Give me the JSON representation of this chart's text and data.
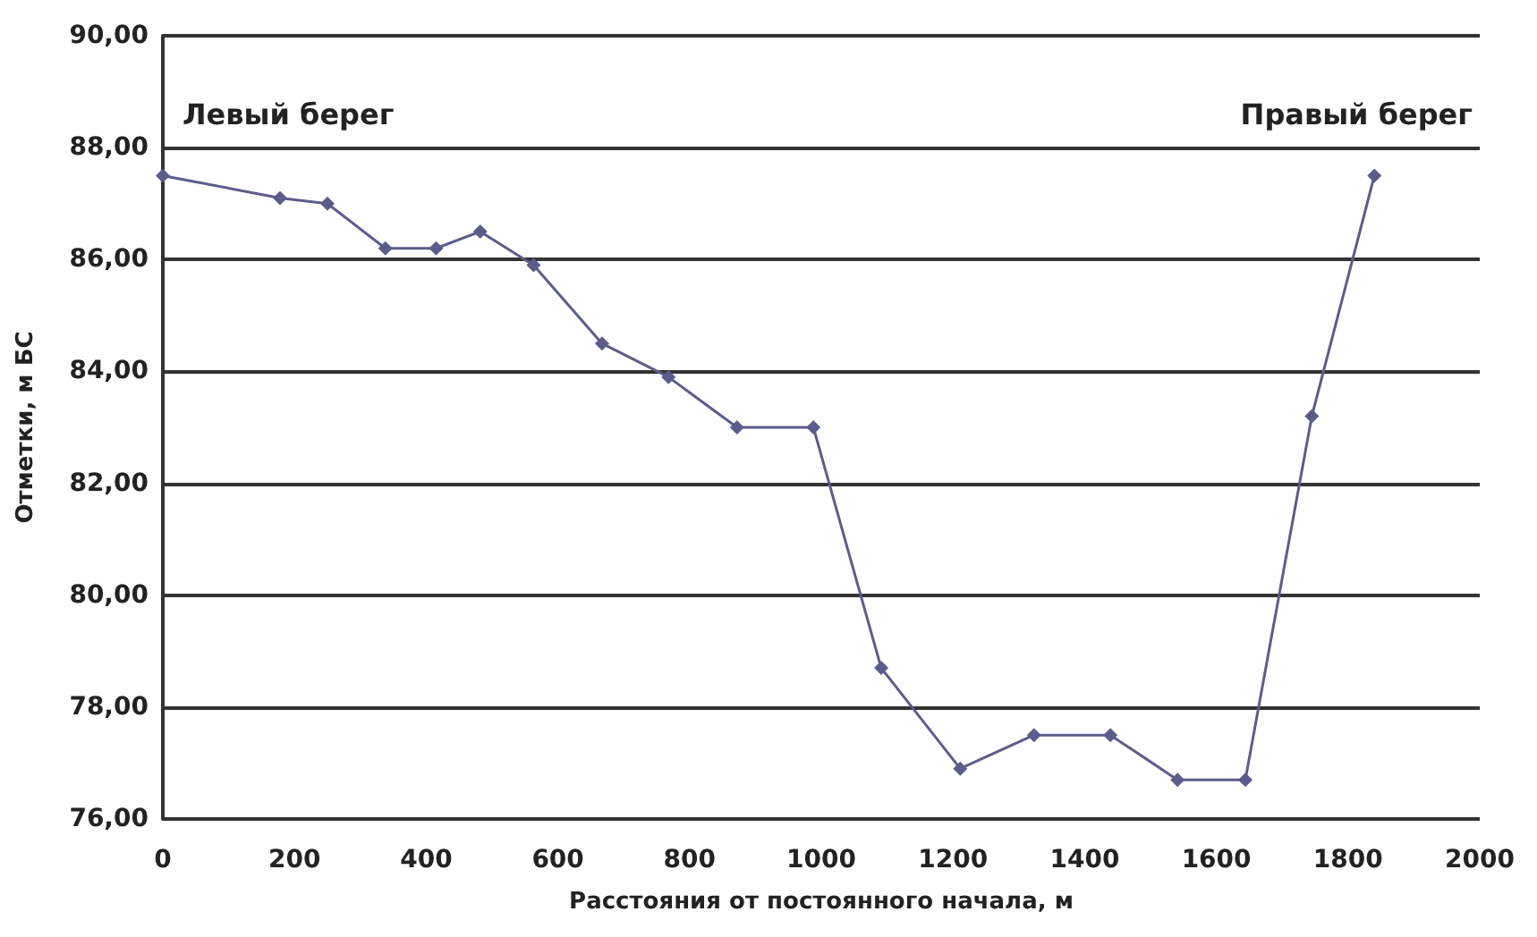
{
  "chart_data": {
    "type": "line",
    "xlabel": "Расстояния от постоянного начала, м",
    "ylabel": "Отметки, м БС",
    "annotations": [
      "Левый берег",
      "Правый берег"
    ],
    "x": [
      0,
      178,
      250,
      338,
      415,
      482,
      563,
      667,
      768,
      872,
      988,
      1091,
      1211,
      1323,
      1439,
      1541,
      1644,
      1745,
      1840
    ],
    "series": [
      {
        "color": "#5c5c8c",
        "values": [
          87.5,
          87.1,
          87.0,
          86.2,
          86.2,
          86.5,
          85.9,
          84.5,
          83.9,
          83.0,
          83.0,
          78.7,
          76.9,
          77.5,
          77.5,
          76.7,
          76.7,
          83.2,
          87.5
        ]
      }
    ],
    "xlim": [
      0,
      2000
    ],
    "xticks": [
      0,
      200,
      400,
      600,
      800,
      1000,
      1200,
      1400,
      1600,
      1800,
      2000
    ],
    "ylim": [
      76,
      90
    ],
    "yticks": [
      {
        "value": 76,
        "label": "76,00"
      },
      {
        "value": 78,
        "label": "78,00"
      },
      {
        "value": 80,
        "label": "80,00"
      },
      {
        "value": 82,
        "label": "82,00"
      },
      {
        "value": 84,
        "label": "84,00"
      },
      {
        "value": 86,
        "label": "86,00"
      },
      {
        "value": 88,
        "label": "88,00"
      },
      {
        "value": 90,
        "label": "90,00"
      }
    ],
    "grid": "y",
    "marker": "diamond",
    "line_style": "solid"
  }
}
